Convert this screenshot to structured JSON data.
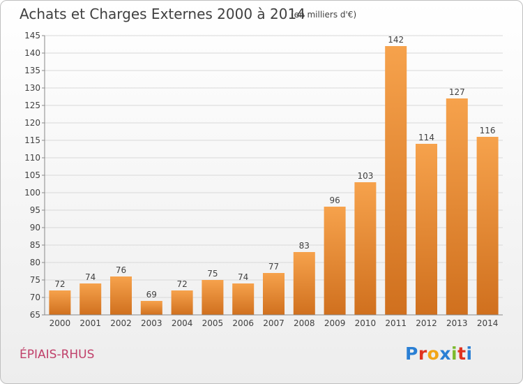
{
  "header": {
    "title": "Achats et Charges Externes 2000 à 2014",
    "subtitle": "(en milliers d'€)"
  },
  "footer": {
    "commune": "ÉPIAIS-RHUS",
    "logo_letters": [
      "P",
      "r",
      "o",
      "x",
      "i",
      "t",
      "i"
    ],
    "logo_colors": [
      "#2a7fd4",
      "#e0331f",
      "#f2a516",
      "#2a7fd4",
      "#7cba2c",
      "#e0331f",
      "#2a7fd4"
    ]
  },
  "colors": {
    "bar_light": "#f6a24c",
    "bar_dark": "#d0701e",
    "axis": "#888888",
    "grid": "#d8d8d8",
    "text": "#404040"
  },
  "chart_data": {
    "type": "bar",
    "title": "Achats et Charges Externes 2000 à 2014",
    "subtitle": "(en milliers d'€)",
    "categories": [
      "2000",
      "2001",
      "2002",
      "2003",
      "2004",
      "2005",
      "2006",
      "2007",
      "2008",
      "2009",
      "2010",
      "2011",
      "2012",
      "2013",
      "2014"
    ],
    "values": [
      72,
      74,
      76,
      69,
      72,
      75,
      74,
      77,
      83,
      96,
      103,
      142,
      114,
      127,
      116
    ],
    "ylim": [
      65,
      145
    ],
    "yticks": [
      65,
      70,
      75,
      80,
      85,
      90,
      95,
      100,
      105,
      110,
      115,
      120,
      125,
      130,
      135,
      140,
      145
    ],
    "grid": true,
    "data_labels": true
  }
}
